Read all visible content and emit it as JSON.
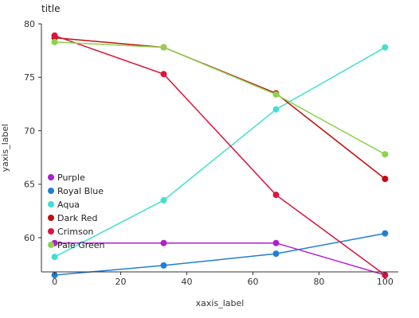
{
  "chart_data": {
    "type": "line",
    "title": "title",
    "xlabel": "xaxis_label",
    "ylabel": "yaxis_label",
    "x": [
      0,
      33,
      67,
      100
    ],
    "x_ticks": [
      0,
      20,
      40,
      60,
      80,
      100
    ],
    "y_ticks": [
      60,
      65,
      70,
      75,
      80
    ],
    "xlim": [
      -4,
      104
    ],
    "ylim": [
      56.8,
      80
    ],
    "grid": false,
    "legend_position": "left",
    "series": [
      {
        "name": "Purple",
        "color": "#b01ecd",
        "values": [
          59.5,
          59.5,
          59.5,
          56.5
        ]
      },
      {
        "name": "Royal Blue",
        "color": "#1f7fd3",
        "values": [
          56.5,
          57.4,
          58.5,
          60.4
        ]
      },
      {
        "name": "Aqua",
        "color": "#40e0d0",
        "values": [
          58.2,
          63.5,
          72.0,
          77.8
        ]
      },
      {
        "name": "Dark Red",
        "color": "#c30d0d",
        "values": [
          78.7,
          77.8,
          73.5,
          65.5
        ]
      },
      {
        "name": "Crimson",
        "color": "#dc143c",
        "values": [
          78.9,
          75.3,
          64.0,
          56.5
        ]
      },
      {
        "name": "Pale Green",
        "color": "#8bd44c",
        "values": [
          78.3,
          77.8,
          73.4,
          67.8
        ]
      }
    ]
  }
}
